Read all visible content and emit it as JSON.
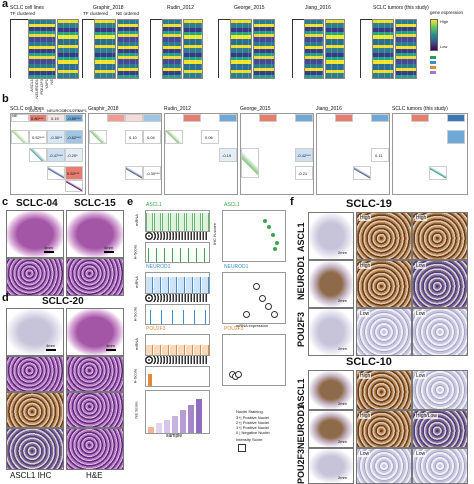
{
  "panels": {
    "a": {
      "label": "a",
      "datasets": [
        "SCLC cell lines",
        "Graphir_2018",
        "Rudin_2012",
        "George_2015",
        "Jiang_2016",
        "SCLC tumors (this study)"
      ],
      "sub_left": "TF clustered",
      "sub_right": "NE ordered",
      "genes": [
        "ASCL1",
        "NEUROD1",
        "POU2F3",
        "YAP1",
        "NE"
      ],
      "legend_title": "gene expression",
      "legend_high": "High",
      "legend_low": "Low"
    },
    "b": {
      "label": "b",
      "datasets": [
        "SCLC cell lines",
        "Graphir_2018",
        "Rudin_2012",
        "George_2015",
        "Jiang_2016",
        "SCLC tumors (this study)"
      ],
      "header": [
        "NE",
        "ASCL1",
        "NEUROD1",
        "POU2F3",
        "YAP1"
      ],
      "corr": [
        [
          "0.52***",
          "-0.30**",
          "-0.62***"
        ],
        [
          "-0.47***",
          "-0.20*",
          "-0.17"
        ],
        [
          "",
          "0.10",
          "0.04"
        ],
        [
          "0.53***",
          "-0.19",
          "-0.09"
        ],
        [
          "-0.30***",
          "-0.42***",
          "-0.21"
        ],
        [
          "",
          "0.06",
          "0.11"
        ]
      ],
      "corr_a": [
        "0.80***",
        "0.19",
        "-0.80***",
        "-0.76***"
      ]
    },
    "c": {
      "label": "c",
      "samples": [
        "SCLC-04",
        "SCLC-15"
      ],
      "scale": "4mm",
      "scale2": "4mm"
    },
    "d": {
      "label": "d",
      "sample": "SCLC-20",
      "scale": "4mm",
      "scale2": "4mm",
      "bottom_left": "ASCL1 IHC",
      "bottom_right": "H&E"
    },
    "e": {
      "label": "e",
      "genes": [
        "ASCL1",
        "NEUROD1",
        "POU2F3"
      ],
      "row_labels": [
        "mRNA",
        "H-Score",
        "mRNA",
        "H-Score",
        "mRNA",
        "H-Score"
      ],
      "ne_label": "NE Score",
      "x_label": "sample",
      "scatter_x": "mRNA expression",
      "scatter_y": "IHC H-score",
      "legend_title": "Nuclei Staining",
      "legend_items": [
        "3+| Positive Nuclei",
        "2+| Positive Nuclei",
        "1+| Positive Nuclei",
        "0 | Negative Nuclei"
      ],
      "legend_title2": "Intensity Score",
      "colors": {
        "ascl1": "#3aa84a",
        "neurod1": "#3a8fd2",
        "pou2f3": "#e38a3a",
        "ne": "#9b7bc8"
      }
    },
    "f": {
      "label": "f",
      "sample1": "SCLC-19",
      "sample2": "SCLC-10",
      "genes": [
        "ASCL1",
        "NEUROD1",
        "POU2F3"
      ],
      "scale": "2mm",
      "s19_tags": [
        [
          "High",
          "High"
        ],
        [
          "High",
          "Low"
        ],
        [
          "Low",
          "Low"
        ]
      ],
      "s10_tags": [
        [
          "High",
          "Low"
        ],
        [
          "High",
          "High/Low"
        ],
        [
          "Low",
          "Low"
        ]
      ]
    }
  }
}
